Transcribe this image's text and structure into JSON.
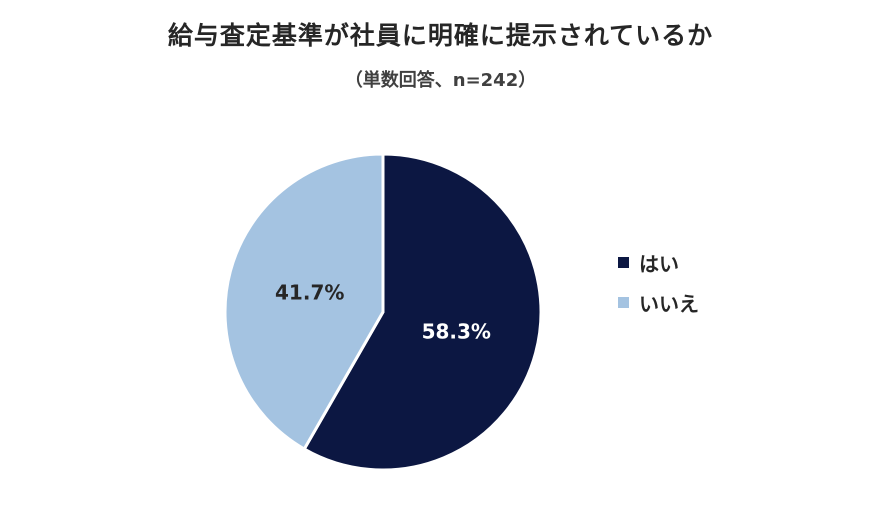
{
  "chart_data": {
    "type": "pie",
    "title": "給与査定基準が社員に明確に提示されているか",
    "subtitle": "（単数回答、n=242）",
    "categories": [
      "はい",
      "いいえ"
    ],
    "values": [
      58.3,
      41.7
    ],
    "labels": [
      "58.3%",
      "41.7%"
    ],
    "colors": [
      "#0c1742",
      "#a4c3e1"
    ],
    "label_colors": [
      "#ffffff",
      "#262626"
    ],
    "legend_position": "right"
  }
}
